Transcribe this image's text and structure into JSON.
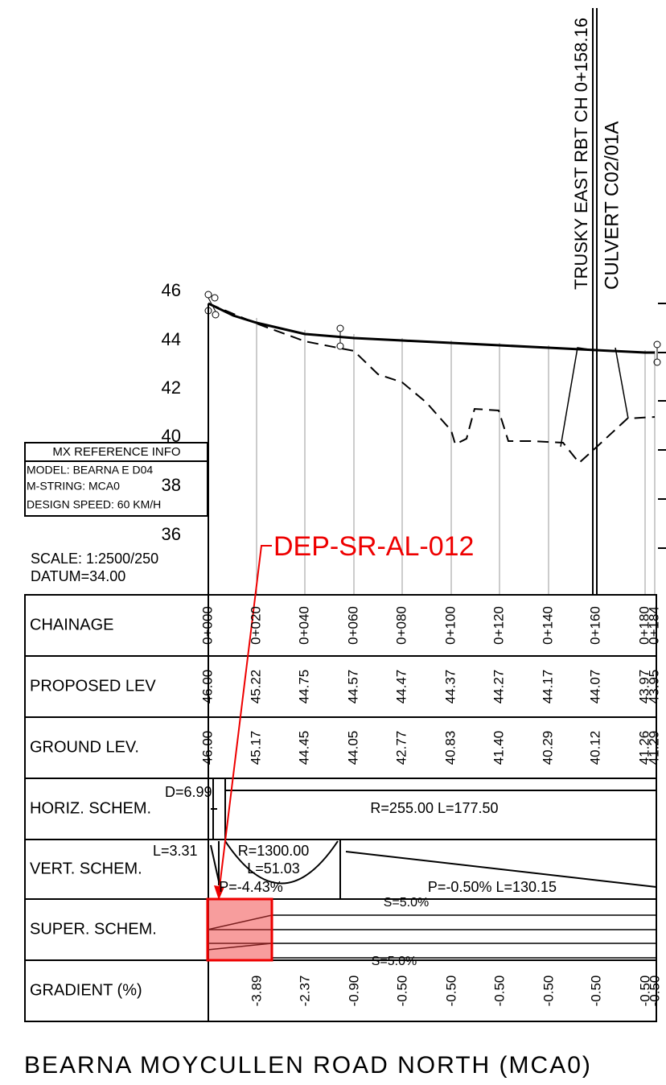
{
  "vertical_labels": [
    "TRUSKY EAST RBT CH 0+158.16",
    "CULVERT C02/01A"
  ],
  "level_axis": [
    "46",
    "44",
    "42",
    "40",
    "38",
    "36"
  ],
  "info_box": {
    "title": "MX REFERENCE INFO",
    "lines": [
      "MODEL: BEARNA E D04",
      "M-STRING: MCA0",
      "DESIGN SPEED: 60 KM/H"
    ]
  },
  "scale": "SCALE: 1:2500/250",
  "datum": "DATUM=34.00",
  "annotation": "DEP-SR-AL-012",
  "table": {
    "row_labels": [
      "CHAINAGE",
      "PROPOSED LEV",
      "GROUND LEV.",
      "HORIZ. SCHEM.",
      "VERT. SCHEM.",
      "SUPER. SCHEM.",
      "GRADIENT (%)"
    ],
    "chainage": [
      "0+000",
      "0+020",
      "0+040",
      "0+060",
      "0+080",
      "0+100",
      "0+120",
      "0+140",
      "0+160",
      "0+180",
      "0+184"
    ],
    "proposed": [
      "46.00",
      "45.22",
      "44.75",
      "44.57",
      "44.47",
      "44.37",
      "44.27",
      "44.17",
      "44.07",
      "43.97",
      "43.95"
    ],
    "ground": [
      "46.00",
      "45.17",
      "44.45",
      "44.05",
      "42.77",
      "40.83",
      "41.40",
      "40.29",
      "40.12",
      "41.26",
      "41.29"
    ],
    "horiz": [
      "D=6.99",
      "R=255.00 L=177.50"
    ],
    "vert": [
      "L=3.31",
      "R=1300.00",
      "L=51.03",
      "P=-4.43%",
      "P=-0.50% L=130.15"
    ],
    "super": [
      "S=5.0%",
      "S=5.0%"
    ],
    "gradient": [
      "-3.89",
      "-2.37",
      "-0.90",
      "-0.50",
      "-0.50",
      "-0.50",
      "-0.50",
      "-0.50",
      "-0.50",
      "-0.50"
    ]
  },
  "footer": "BEARNA MOYCULLEN ROAD NORTH (MCA0)"
}
